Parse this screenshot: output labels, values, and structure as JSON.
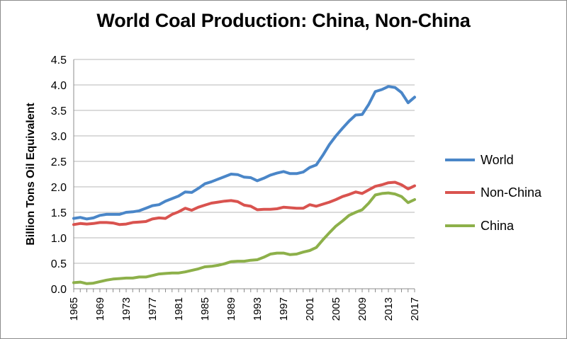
{
  "chart_data": {
    "type": "line",
    "title": "World Coal Production: China, Non-China",
    "xlabel": "",
    "ylabel": "Billion Tons Oil Equivalent",
    "ylim": [
      0,
      4.5
    ],
    "xlim": [
      1965,
      2017
    ],
    "grid": true,
    "legend_position": "right",
    "y_ticks": [
      "0.0",
      "0.5",
      "1.0",
      "1.5",
      "2.0",
      "2.5",
      "3.0",
      "3.5",
      "4.0",
      "4.5"
    ],
    "x_ticks": [
      "1965",
      "1969",
      "1973",
      "1977",
      "1981",
      "1985",
      "1989",
      "1993",
      "1997",
      "2001",
      "2005",
      "2009",
      "2013",
      "2017"
    ],
    "x": [
      1965,
      1966,
      1967,
      1968,
      1969,
      1970,
      1971,
      1972,
      1973,
      1974,
      1975,
      1976,
      1977,
      1978,
      1979,
      1980,
      1981,
      1982,
      1983,
      1984,
      1985,
      1986,
      1987,
      1988,
      1989,
      1990,
      1991,
      1992,
      1993,
      1994,
      1995,
      1996,
      1997,
      1998,
      1999,
      2000,
      2001,
      2002,
      2003,
      2004,
      2005,
      2006,
      2007,
      2008,
      2009,
      2010,
      2011,
      2012,
      2013,
      2014,
      2015,
      2016,
      2017
    ],
    "series": [
      {
        "name": "World",
        "color": "#4a86c8",
        "values": [
          1.38,
          1.4,
          1.37,
          1.39,
          1.44,
          1.46,
          1.46,
          1.46,
          1.5,
          1.51,
          1.53,
          1.58,
          1.63,
          1.65,
          1.72,
          1.77,
          1.82,
          1.9,
          1.89,
          1.97,
          2.06,
          2.1,
          2.15,
          2.2,
          2.25,
          2.24,
          2.19,
          2.18,
          2.12,
          2.17,
          2.23,
          2.27,
          2.3,
          2.26,
          2.26,
          2.29,
          2.38,
          2.43,
          2.62,
          2.83,
          3.0,
          3.15,
          3.29,
          3.41,
          3.42,
          3.62,
          3.87,
          3.91,
          3.97,
          3.95,
          3.85,
          3.65,
          3.76
        ]
      },
      {
        "name": "Non-China",
        "color": "#d9534f",
        "values": [
          1.26,
          1.28,
          1.27,
          1.28,
          1.3,
          1.3,
          1.29,
          1.26,
          1.27,
          1.3,
          1.31,
          1.32,
          1.37,
          1.39,
          1.38,
          1.46,
          1.51,
          1.58,
          1.54,
          1.6,
          1.64,
          1.68,
          1.7,
          1.72,
          1.73,
          1.71,
          1.64,
          1.62,
          1.55,
          1.56,
          1.56,
          1.57,
          1.6,
          1.59,
          1.58,
          1.58,
          1.65,
          1.62,
          1.66,
          1.7,
          1.75,
          1.81,
          1.85,
          1.9,
          1.87,
          1.94,
          2.01,
          2.04,
          2.08,
          2.09,
          2.04,
          1.96,
          2.02
        ]
      },
      {
        "name": "China",
        "color": "#8db04a",
        "values": [
          0.12,
          0.13,
          0.1,
          0.11,
          0.14,
          0.17,
          0.19,
          0.2,
          0.21,
          0.21,
          0.23,
          0.23,
          0.26,
          0.29,
          0.3,
          0.31,
          0.31,
          0.33,
          0.36,
          0.39,
          0.43,
          0.44,
          0.46,
          0.49,
          0.53,
          0.54,
          0.54,
          0.56,
          0.57,
          0.62,
          0.68,
          0.7,
          0.7,
          0.67,
          0.68,
          0.72,
          0.75,
          0.81,
          0.96,
          1.1,
          1.23,
          1.33,
          1.44,
          1.5,
          1.55,
          1.68,
          1.84,
          1.87,
          1.88,
          1.86,
          1.81,
          1.69,
          1.75
        ]
      }
    ]
  }
}
